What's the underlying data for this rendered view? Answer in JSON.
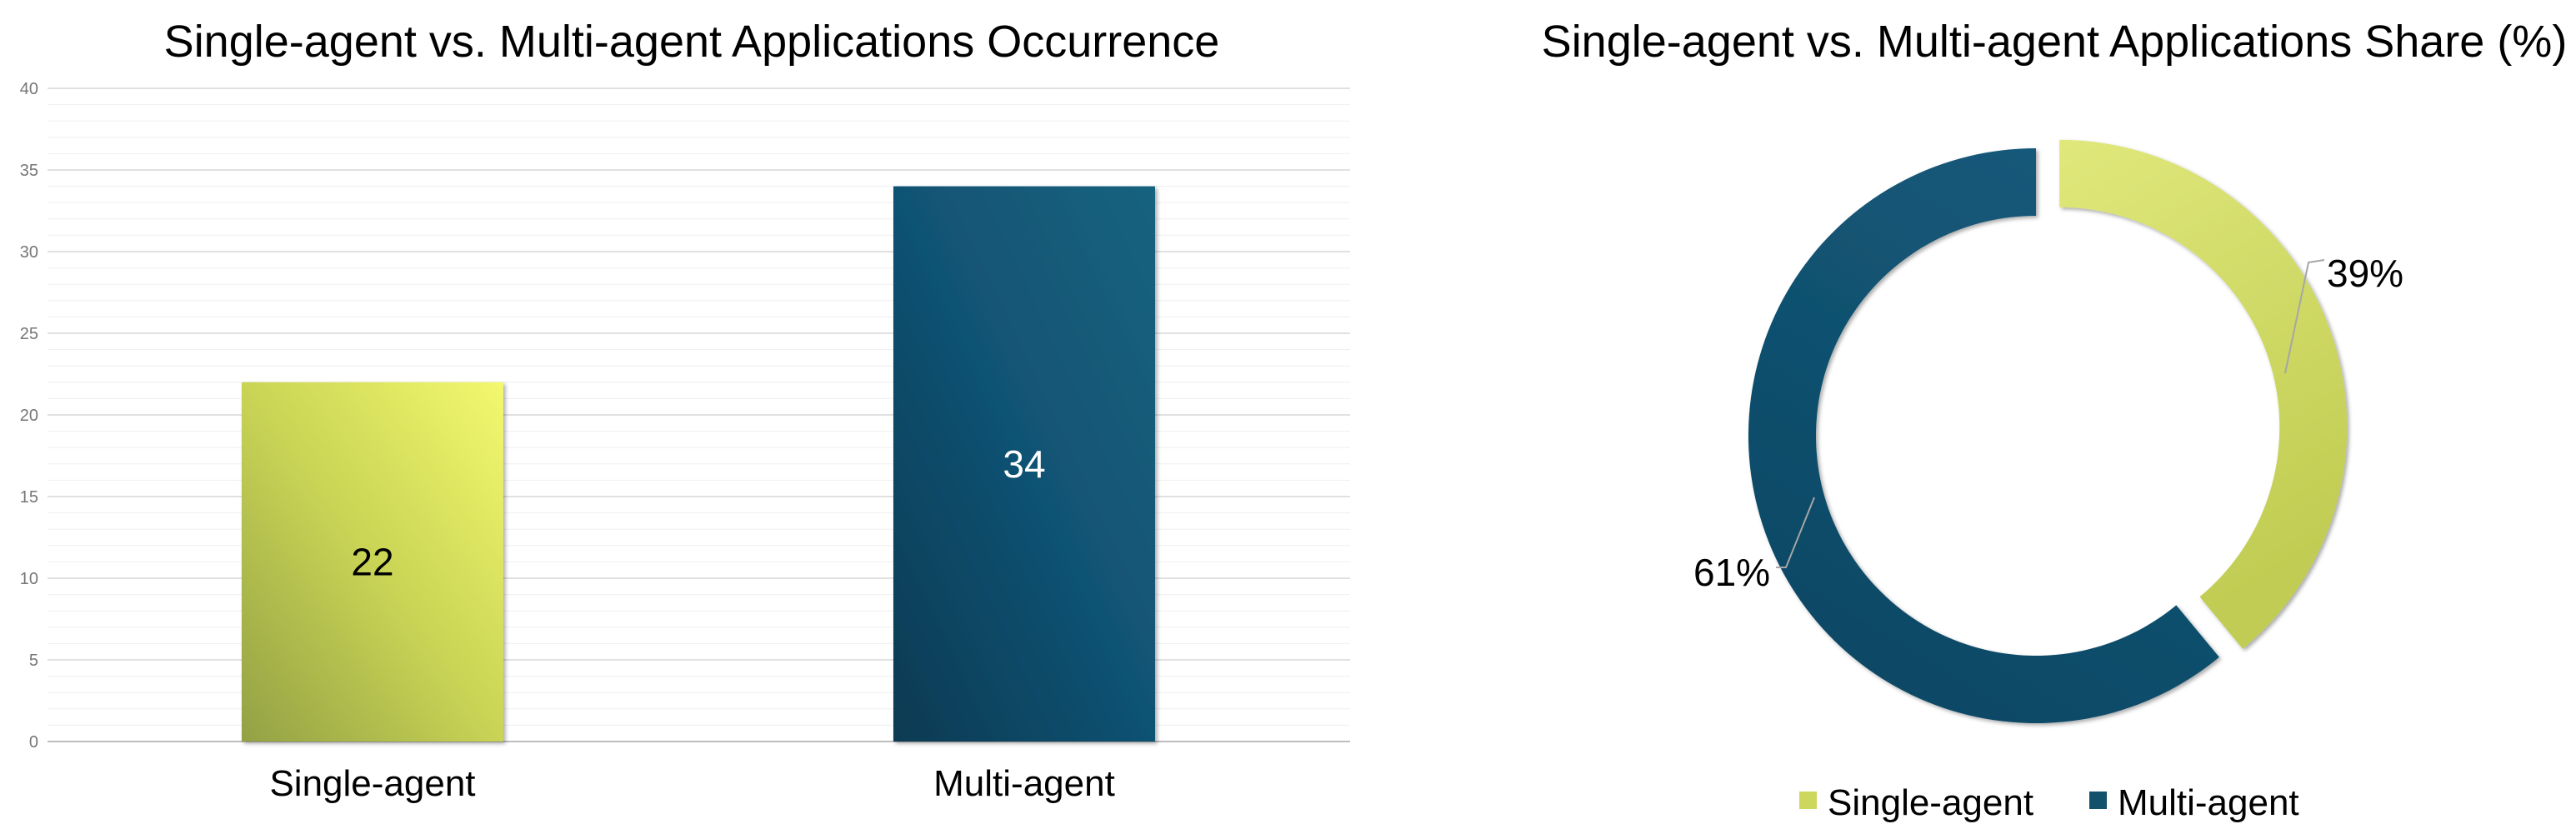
{
  "page": {
    "background": "#ffffff"
  },
  "chart_data": [
    {
      "type": "bar",
      "title": "Single-agent vs. Multi-agent Applications Occurrence",
      "categories": [
        "Single-agent",
        "Multi-agent"
      ],
      "values": [
        22,
        34
      ],
      "value_labels": [
        "22",
        "34"
      ],
      "value_label_colors": [
        "#000000",
        "#ffffff"
      ],
      "bar_gradients": [
        {
          "from": "#93a144",
          "mid": "#c9d455",
          "to": "#f3f86e"
        },
        {
          "from": "#0b3a52",
          "mid": "#115273",
          "to": "#17637f"
        }
      ],
      "xlabel": "",
      "ylabel": "",
      "ylim": [
        0,
        40
      ],
      "y_major_step": 5,
      "y_minor_step": 1,
      "y_tick_labels": [
        "0",
        "5",
        "10",
        "15",
        "20",
        "25",
        "30",
        "35",
        "40"
      ],
      "grid": true,
      "legend_position": "none"
    },
    {
      "type": "pie",
      "donut": true,
      "title": "Single-agent vs. Multi-agent Applications Share (%)",
      "labels": [
        "Single-agent",
        "Multi-agent"
      ],
      "values": [
        39,
        61
      ],
      "slice_labels": [
        "39%",
        "61%"
      ],
      "colors": [
        "#ccd75c",
        "#12506b"
      ],
      "slice_gradients": [
        {
          "from": "#e0e87b",
          "to": "#c0cc52"
        },
        {
          "from": "#15597a",
          "to": "#0c4763"
        }
      ],
      "start_angle_deg": 0,
      "exploded_slice": "Single-agent",
      "legend_position": "bottom",
      "leader_line_color": "#a6a6a6"
    }
  ]
}
